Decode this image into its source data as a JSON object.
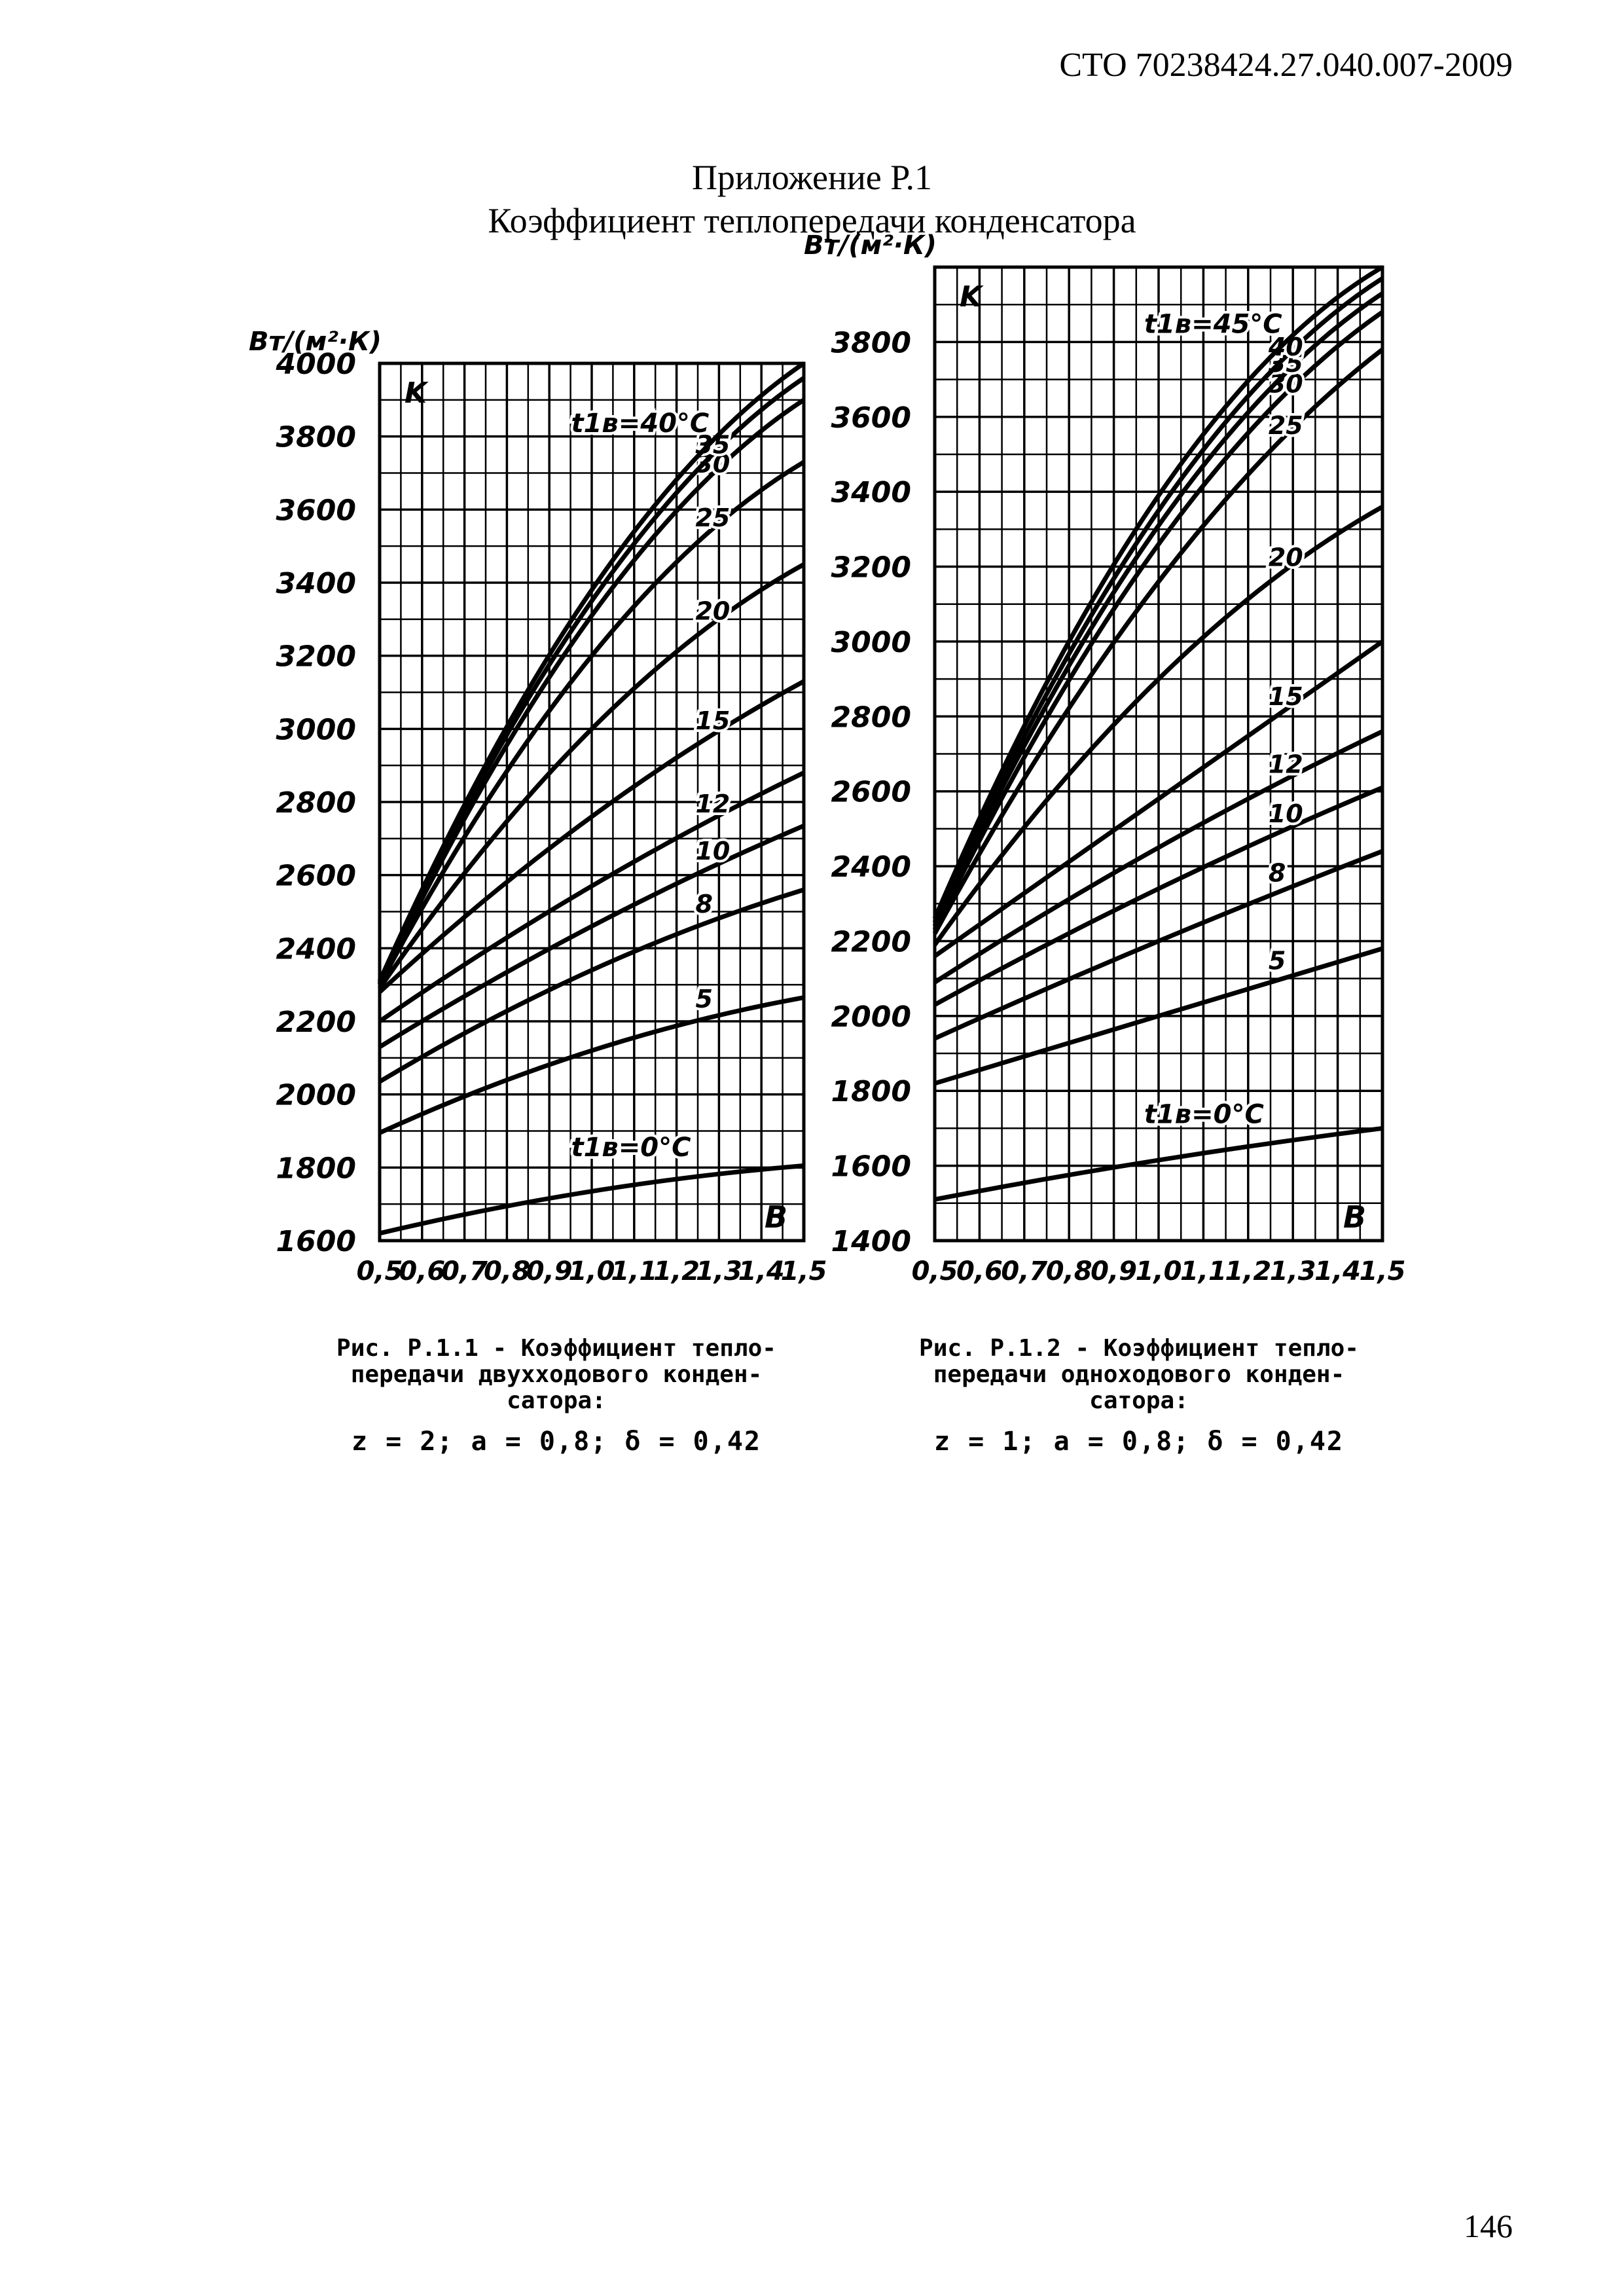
{
  "header": {
    "doc_code": "СТО 70238424.27.040.007-2009"
  },
  "appendix": {
    "label": "Приложение Р.1",
    "title": "Коэффициент теплопередачи конденсатора"
  },
  "page_number": "146",
  "chart_data": [
    {
      "type": "line",
      "unit_label": "Вт/(м²·К)",
      "y_symbol": "K",
      "x_symbol": "B",
      "xlim": [
        0.5,
        1.5
      ],
      "ylim": [
        1600,
        4000
      ],
      "xticks": [
        0.5,
        0.6,
        0.7,
        0.8,
        0.9,
        1.0,
        1.1,
        1.2,
        1.3,
        1.4,
        1.5
      ],
      "xtick_labels": [
        "0,5",
        "0,6",
        "0,7",
        "0,8",
        "0,9",
        "1,0",
        "1,1",
        "1,2",
        "1,3",
        "1,4",
        "1,5"
      ],
      "yticks": [
        1600,
        1800,
        2000,
        2200,
        2400,
        2600,
        2800,
        3000,
        3200,
        3400,
        3600,
        3800,
        4000
      ],
      "grid": true,
      "series": [
        {
          "name": "t1в=0°C",
          "x": [
            0.5,
            1.0,
            1.5
          ],
          "values": [
            1620,
            1735,
            1805
          ]
        },
        {
          "name": "5",
          "x": [
            0.5,
            1.0,
            1.5
          ],
          "values": [
            1895,
            2120,
            2265
          ]
        },
        {
          "name": "8",
          "x": [
            0.5,
            1.0,
            1.5
          ],
          "values": [
            2035,
            2340,
            2560
          ]
        },
        {
          "name": "10",
          "x": [
            0.5,
            1.0,
            1.5
          ],
          "values": [
            2130,
            2460,
            2735
          ]
        },
        {
          "name": "12",
          "x": [
            0.5,
            1.0,
            1.5
          ],
          "values": [
            2200,
            2570,
            2880
          ]
        },
        {
          "name": "15",
          "x": [
            0.5,
            1.0,
            1.5
          ],
          "values": [
            2280,
            2760,
            3130
          ]
        },
        {
          "name": "20",
          "x": [
            0.5,
            1.0,
            1.5
          ],
          "values": [
            2290,
            3000,
            3450
          ]
        },
        {
          "name": "25",
          "x": [
            0.5,
            1.0,
            1.5
          ],
          "values": [
            2300,
            3200,
            3730
          ]
        },
        {
          "name": "30",
          "x": [
            0.5,
            1.0,
            1.5
          ],
          "values": [
            2300,
            3310,
            3900
          ]
        },
        {
          "name": "35",
          "x": [
            0.5,
            1.0,
            1.5
          ],
          "values": [
            2305,
            3350,
            3960
          ]
        },
        {
          "name": "t1в=40°C",
          "x": [
            0.5,
            1.0,
            1.5
          ],
          "values": [
            2310,
            3380,
            4000
          ]
        }
      ],
      "caption": {
        "line1": "Рис. Р.1.1 - Коэффициент тепло-",
        "line2": "передачи двухходового конден-",
        "line3": "сатора:",
        "params": "z = 2;  a = 0,8;  δ = 0,42"
      }
    },
    {
      "type": "line",
      "unit_label": "Вт/(м²·К)",
      "y_symbol": "K",
      "x_symbol": "B",
      "xlim": [
        0.5,
        1.5
      ],
      "ylim": [
        1400,
        4000
      ],
      "xticks": [
        0.5,
        0.6,
        0.7,
        0.8,
        0.9,
        1.0,
        1.1,
        1.2,
        1.3,
        1.4,
        1.5
      ],
      "xtick_labels": [
        "0,5",
        "0,6",
        "0,7",
        "0,8",
        "0,9",
        "1,0",
        "1,1",
        "1,2",
        "1,3",
        "1,4",
        "1,5"
      ],
      "yticks": [
        1400,
        1600,
        1800,
        2000,
        2200,
        2400,
        2600,
        2800,
        3000,
        3200,
        3400,
        3600,
        3800
      ],
      "grid": true,
      "series": [
        {
          "name": "t1в=0°C",
          "x": [
            0.5,
            1.0,
            1.5
          ],
          "values": [
            1510,
            1615,
            1700
          ]
        },
        {
          "name": "5",
          "x": [
            0.5,
            1.0,
            1.5
          ],
          "values": [
            1820,
            2000,
            2180
          ]
        },
        {
          "name": "8",
          "x": [
            0.5,
            1.0,
            1.5
          ],
          "values": [
            1940,
            2200,
            2440
          ]
        },
        {
          "name": "10",
          "x": [
            0.5,
            1.0,
            1.5
          ],
          "values": [
            2030,
            2340,
            2610
          ]
        },
        {
          "name": "12",
          "x": [
            0.5,
            1.0,
            1.5
          ],
          "values": [
            2090,
            2450,
            2760
          ]
        },
        {
          "name": "15",
          "x": [
            0.5,
            1.0,
            1.5
          ],
          "values": [
            2160,
            2580,
            3000
          ]
        },
        {
          "name": "20",
          "x": [
            0.5,
            1.0,
            1.5
          ],
          "values": [
            2190,
            2900,
            3360
          ]
        },
        {
          "name": "25",
          "x": [
            0.5,
            1.0,
            1.5
          ],
          "values": [
            2220,
            3160,
            3780
          ]
        },
        {
          "name": "30",
          "x": [
            0.5,
            1.0,
            1.5
          ],
          "values": [
            2230,
            3260,
            3880
          ]
        },
        {
          "name": "35",
          "x": [
            0.5,
            1.0,
            1.5
          ],
          "values": [
            2240,
            3310,
            3930
          ]
        },
        {
          "name": "40",
          "x": [
            0.5,
            1.0,
            1.5
          ],
          "values": [
            2250,
            3350,
            3970
          ]
        },
        {
          "name": "t1в=45°C",
          "x": [
            0.5,
            1.0,
            1.5
          ],
          "values": [
            2260,
            3390,
            4000
          ]
        }
      ],
      "caption": {
        "line1": "Рис. Р.1.2 - Коэффициент тепло-",
        "line2": "передачи одноходового конден-",
        "line3": "сатора:",
        "params": "z = 1;  a = 0,8;  δ = 0,42"
      }
    }
  ]
}
